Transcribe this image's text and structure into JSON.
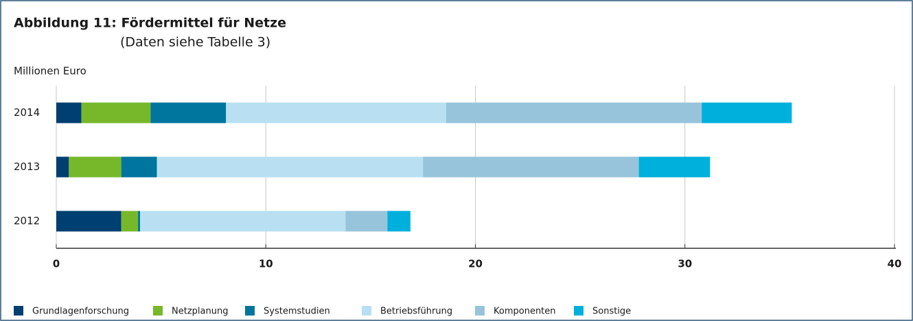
{
  "chart_data": {
    "type": "stacked-barh",
    "title": "Abbildung 11:  Fördermittel für Netze",
    "subtitle": "(Daten siehe Tabelle 3)",
    "y_label": "Millionen Euro",
    "categories": [
      "2012",
      "2013",
      "2014"
    ],
    "series": [
      {
        "name": "Grundlagenforschung",
        "color": "#003f72",
        "values": [
          3.1,
          0.6,
          1.2
        ]
      },
      {
        "name": "Netzplanung",
        "color": "#77b82a",
        "values": [
          0.8,
          2.5,
          3.3
        ]
      },
      {
        "name": "Systemstudien",
        "color": "#00759e",
        "values": [
          0.1,
          1.7,
          3.6
        ]
      },
      {
        "name": "Betriebsführung",
        "color": "#b8e0f2",
        "values": [
          9.8,
          12.7,
          10.5
        ]
      },
      {
        "name": "Komponenten",
        "color": "#97c4da",
        "values": [
          2.0,
          10.3,
          12.2
        ]
      },
      {
        "name": "Sonstige",
        "color": "#00b0dc",
        "values": [
          1.1,
          3.4,
          4.3
        ]
      }
    ],
    "xlim": [
      0,
      40
    ],
    "xticks": [
      0,
      10,
      20,
      30,
      40
    ],
    "grid": true,
    "legend": "bottom"
  }
}
